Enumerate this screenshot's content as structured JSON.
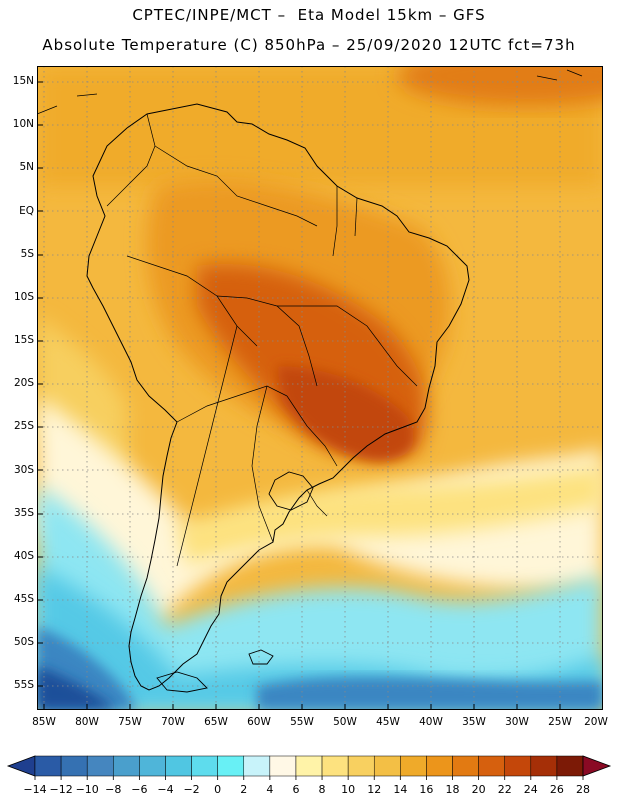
{
  "header": {
    "line1": "CPTEC/INPE/MCT –  Eta Model 15km – GFS",
    "line2": "Absolute Temperature (C) 850hPa – 25/09/2020 12UTC fct=73h"
  },
  "axes": {
    "lat_labels": [
      "15N",
      "10N",
      "5N",
      "EQ",
      "5S",
      "10S",
      "15S",
      "20S",
      "25S",
      "30S",
      "35S",
      "40S",
      "45S",
      "50S",
      "55S"
    ],
    "lon_labels": [
      "85W",
      "80W",
      "75W",
      "70W",
      "65W",
      "60W",
      "55W",
      "50W",
      "45W",
      "40W",
      "35W",
      "30W",
      "25W",
      "20W"
    ]
  },
  "colorbar": {
    "labels": [
      "-14",
      "-12",
      "-10",
      "-8",
      "-6",
      "-4",
      "-2",
      "0",
      "2",
      "4",
      "6",
      "8",
      "10",
      "12",
      "14",
      "16",
      "18",
      "20",
      "22",
      "24",
      "26",
      "28"
    ],
    "colors": [
      "#1f3f8f",
      "#2a5ba6",
      "#3571b2",
      "#4586bf",
      "#4a9fcc",
      "#4fb5d9",
      "#50c6e2",
      "#5edced",
      "#68f0f5",
      "#c8f3fa",
      "#fff8e6",
      "#fff3a8",
      "#fde27f",
      "#f8d060",
      "#f3bf45",
      "#efaa2a",
      "#ec951b",
      "#e27a12",
      "#d6600e",
      "#c4470a",
      "#a52f07",
      "#7c1a06",
      "#8a0a24"
    ]
  },
  "map": {
    "colors": {
      "ocean_deep_cold": "#1f4f9a",
      "ocean_cold": "#3a86c2",
      "ocean_cool": "#55c9e6",
      "ocean_mild": "#8ee6f2",
      "ocean_pale": "#fff6d8",
      "warm_low": "#f7cf5f",
      "warm": "#f2b43a",
      "warmer": "#ec9a23",
      "hot": "#e27d14",
      "very_hot": "#d4600d",
      "hottest": "#c24709",
      "coast": "#000000",
      "grid": "#888888"
    }
  }
}
